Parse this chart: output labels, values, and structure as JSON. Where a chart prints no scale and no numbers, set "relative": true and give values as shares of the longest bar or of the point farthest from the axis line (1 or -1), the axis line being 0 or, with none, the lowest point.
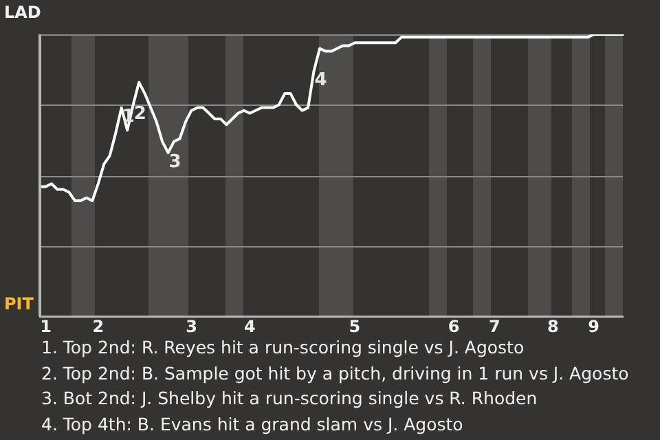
{
  "chart_data": {
    "type": "line",
    "marker": "none",
    "line_style": "solid",
    "grid": "y",
    "legend": false,
    "relative": true,
    "categories": [
      null,
      "1",
      null,
      null,
      null,
      null,
      null,
      null,
      null,
      null,
      "2",
      null,
      null,
      null,
      null,
      null,
      null,
      null,
      null,
      null,
      null,
      null,
      null,
      null,
      null,
      null,
      "3",
      null,
      null,
      null,
      null,
      null,
      null,
      null,
      null,
      null,
      "4",
      null,
      null,
      null,
      null,
      null,
      null,
      null,
      null,
      null,
      null,
      null,
      null,
      null,
      null,
      null,
      null,
      null,
      "5",
      null,
      null,
      null,
      null,
      null,
      null,
      null,
      null,
      null,
      null,
      null,
      null,
      null,
      null,
      null,
      null,
      "6",
      null,
      null,
      null,
      null,
      null,
      null,
      "7",
      null,
      null,
      null,
      null,
      null,
      null,
      null,
      null,
      null,
      "8",
      null,
      null,
      null,
      null,
      null,
      null,
      "9",
      null,
      null,
      null,
      null,
      null
    ],
    "series": [
      {
        "color": "#ffffff",
        "values": [
          0.46,
          0.46,
          0.47,
          0.45,
          0.45,
          0.44,
          0.41,
          0.41,
          0.42,
          0.41,
          0.47,
          0.54,
          0.57,
          0.65,
          0.74,
          0.66,
          0.75,
          0.83,
          0.79,
          0.74,
          0.69,
          0.62,
          0.58,
          0.62,
          0.63,
          0.69,
          0.73,
          0.74,
          0.74,
          0.72,
          0.7,
          0.7,
          0.68,
          0.7,
          0.72,
          0.73,
          0.72,
          0.73,
          0.74,
          0.74,
          0.74,
          0.75,
          0.79,
          0.79,
          0.75,
          0.73,
          0.74,
          0.87,
          0.95,
          0.94,
          0.94,
          0.95,
          0.96,
          0.96,
          0.97,
          0.97,
          0.97,
          0.97,
          0.97,
          0.97,
          0.97,
          0.97,
          0.99,
          0.99,
          0.99,
          0.99,
          0.99,
          0.99,
          0.99,
          0.99,
          0.99,
          0.99,
          0.99,
          0.99,
          0.99,
          0.99,
          0.99,
          0.99,
          0.99,
          0.99,
          0.99,
          0.99,
          0.99,
          0.99,
          0.99,
          0.99,
          0.99,
          0.99,
          0.99,
          0.99,
          0.99,
          0.99,
          0.99,
          0.99,
          0.99,
          1,
          1,
          1,
          1,
          1,
          1
        ]
      }
    ],
    "annotations": [
      "LAD",
      "PIT",
      {
        "text": "1",
        "y": 0.74
      },
      {
        "text": "2",
        "y": 0.75
      },
      {
        "text": "3",
        "y": 0.58
      },
      {
        "text": "4",
        "y": 0.87
      },
      "1. Top 2nd: R. Reyes hit a run-scoring single vs J. Agosto",
      "2. Top 2nd: B. Sample got hit by a pitch, driving in 1 run vs J. Agosto",
      "3. Bot 2nd: J. Shelby hit a run-scoring single vs R. Rhoden",
      "4. Top 4th: B. Evans hit a grand slam vs J. Agosto"
    ]
  }
}
